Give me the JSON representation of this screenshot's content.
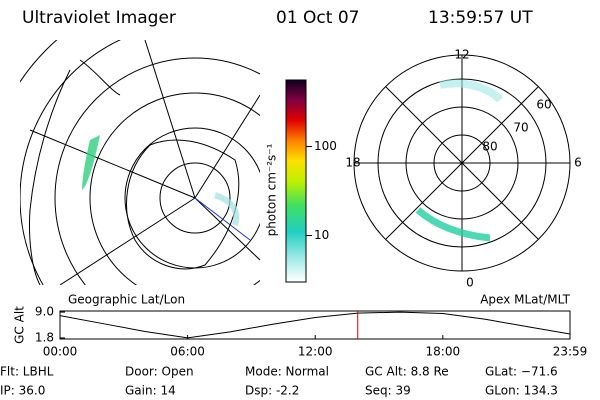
{
  "header": {
    "instrument": "Ultraviolet Imager",
    "date": "01 Oct 07",
    "time": "13:59:57 UT"
  },
  "left_panel_label": "Geographic Lat/Lon",
  "right_panel_label": "Apex MLat/MLT",
  "colorbar": {
    "label": "photon cm⁻²s⁻¹",
    "scale": "log",
    "ylim": [
      3,
      560
    ],
    "ticks": [
      10,
      100
    ]
  },
  "polar": {
    "mlt_labels": {
      "top": "12",
      "right": "6",
      "bottom": "0",
      "left": "18"
    },
    "mlat_labels": [
      "80",
      "70",
      "60"
    ]
  },
  "altitude": {
    "ylabel": "GC Alt",
    "ylim": [
      1.5,
      9.3
    ],
    "yticks": [
      1.8,
      {
        "value": 9,
        "label": "9.0"
      }
    ],
    "xlim": [
      0,
      23.98
    ],
    "xticks": [
      {
        "value": 0,
        "label": "00:00"
      },
      {
        "value": 6,
        "label": "06:00"
      },
      {
        "value": 12,
        "label": "12:00"
      },
      {
        "value": 18,
        "label": "18:00"
      },
      {
        "value": 23.98,
        "label": "23:59"
      }
    ],
    "x": [
      0,
      2,
      4,
      6,
      8,
      10,
      12,
      14,
      16,
      18,
      20,
      22,
      23.98
    ],
    "values": [
      8.0,
      5.8,
      3.6,
      1.8,
      3.5,
      5.6,
      7.5,
      8.7,
      9.0,
      8.6,
      7.0,
      4.9,
      2.9
    ],
    "line_color": "#000000",
    "current_time": 14.0,
    "marker_color": "#d00000"
  },
  "footer": [
    [
      "Flt: LBHL",
      "Door: Open",
      "Mode: Normal",
      "GC Alt: 8.8 Re",
      "GLat: −71.6"
    ],
    [
      "IP: 36.0",
      "Gain: 14",
      "Dsp:    -2.2",
      "Seq: 39",
      "GLon: 134.3"
    ]
  ]
}
